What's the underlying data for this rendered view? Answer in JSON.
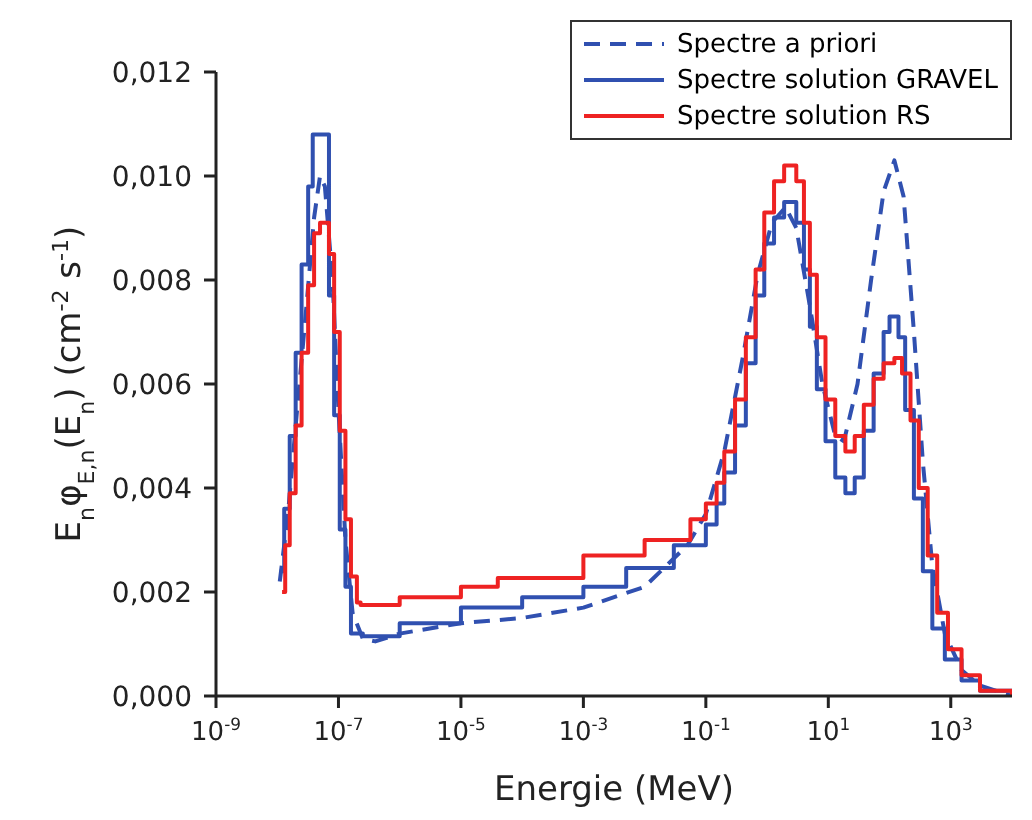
{
  "chart_data": {
    "type": "line",
    "xlabel": "Energie (MeV)",
    "ylabel": "E$_{n}$φ$_{E,n}$(E$_{n}$) (cm$^{-2}$ s$^{-1}$)",
    "log": "x",
    "xlim": [
      1e-09,
      10000
    ],
    "ylim": [
      0,
      0.012
    ],
    "xticks": [
      {
        "value": 1e-09,
        "label": "10$^{-9}$"
      },
      {
        "value": 1e-07,
        "label": "10$^{-7}$"
      },
      {
        "value": 1e-05,
        "label": "10$^{-5}$"
      },
      {
        "value": 0.001,
        "label": "10$^{-3}$"
      },
      {
        "value": 0.1,
        "label": "10$^{-1}$"
      },
      {
        "value": 10,
        "label": "10$^{1}$"
      },
      {
        "value": 1000,
        "label": "10$^{3}$"
      }
    ],
    "yticks": [
      {
        "value": 0,
        "label": "0,000"
      },
      {
        "value": 0.002,
        "label": "0,002"
      },
      {
        "value": 0.004,
        "label": "0,004"
      },
      {
        "value": 0.006,
        "label": "0,006"
      },
      {
        "value": 0.008,
        "label": "0,008"
      },
      {
        "value": 0.01,
        "label": "0,010"
      },
      {
        "value": 0.012,
        "label": "0,012"
      }
    ],
    "grid": false,
    "legend": "top right",
    "marker": "none",
    "series": [
      {
        "name": "Spectre a priori",
        "line_style": "dashed",
        "color": "#3050b0",
        "x": [
          1.1e-08,
          1.5e-08,
          2e-08,
          3e-08,
          4e-08,
          5e-08,
          6e-08,
          8e-08,
          1e-07,
          1.3e-07,
          1.7e-07,
          2.5e-07,
          4e-07,
          1e-06,
          1e-05,
          0.0001,
          0.001,
          0.01,
          0.05,
          0.1,
          0.2,
          0.4,
          0.7,
          1.2,
          2,
          3,
          5,
          8,
          13,
          18,
          30,
          50,
          80,
          120,
          170,
          250,
          350,
          500,
          800,
          1500,
          3000,
          10000
        ],
        "values": [
          0.0022,
          0.0035,
          0.0052,
          0.0075,
          0.0092,
          0.01,
          0.0098,
          0.008,
          0.0055,
          0.003,
          0.0016,
          0.0011,
          0.00105,
          0.0012,
          0.0014,
          0.0015,
          0.0017,
          0.0021,
          0.0029,
          0.0035,
          0.0047,
          0.0065,
          0.0081,
          0.0091,
          0.0094,
          0.009,
          0.0075,
          0.006,
          0.005,
          0.0049,
          0.006,
          0.008,
          0.0097,
          0.0103,
          0.0096,
          0.007,
          0.0045,
          0.0025,
          0.0012,
          0.0005,
          0.0002,
          0
        ]
      },
      {
        "name": "Spectre solution GRAVEL",
        "type": "step",
        "line_style": "solid",
        "color": "#3050b0",
        "x": [
          1.1e-08,
          1.3e-08,
          1.6e-08,
          2e-08,
          2.5e-08,
          3.2e-08,
          3.8e-08,
          7e-08,
          8.5e-08,
          1.05e-07,
          1.3e-07,
          1.6e-07,
          2.5e-07,
          1e-06,
          1e-05,
          0.0001,
          0.001,
          0.005,
          0.03,
          0.1,
          0.15,
          0.2,
          0.3,
          0.45,
          0.65,
          0.9,
          1.3,
          1.9,
          3,
          4,
          5,
          6.5,
          9,
          13,
          19,
          27,
          38,
          55,
          80,
          100,
          140,
          180,
          250,
          350,
          500,
          800,
          1500,
          3000,
          10000
        ],
        "values": [
          0.0024,
          0.0036,
          0.005,
          0.0066,
          0.0083,
          0.0098,
          0.0108,
          0.0077,
          0.0054,
          0.0032,
          0.0021,
          0.0012,
          0.00115,
          0.0014,
          0.0017,
          0.0019,
          0.0021,
          0.00246,
          0.0029,
          0.0033,
          0.0037,
          0.0043,
          0.0052,
          0.0064,
          0.0077,
          0.0087,
          0.0092,
          0.0095,
          0.0091,
          0.0082,
          0.0071,
          0.0059,
          0.0049,
          0.0042,
          0.0039,
          0.0042,
          0.0051,
          0.0062,
          0.007,
          0.0073,
          0.0069,
          0.0055,
          0.0038,
          0.0024,
          0.0013,
          0.0007,
          0.0003,
          0.0001,
          0
        ]
      },
      {
        "name": "Spectre solution RS",
        "type": "step",
        "line_style": "solid",
        "color": "#ee2222",
        "x": [
          1.2e-08,
          1.35e-08,
          1.6e-08,
          2e-08,
          2.5e-08,
          3.2e-08,
          4e-08,
          5e-08,
          7e-08,
          8.5e-08,
          1.05e-07,
          1.3e-07,
          1.6e-07,
          2e-07,
          2.3e-07,
          1e-06,
          1e-05,
          4e-05,
          0.001,
          0.01,
          0.056,
          0.1,
          0.15,
          0.2,
          0.3,
          0.45,
          0.65,
          0.9,
          1.3,
          1.9,
          3,
          4,
          5,
          6.5,
          9,
          13,
          19,
          27,
          38,
          55,
          80,
          120,
          160,
          220,
          300,
          420,
          600,
          900,
          1500,
          3000,
          10000
        ],
        "values": [
          0.002,
          0.0029,
          0.0039,
          0.0052,
          0.0066,
          0.0079,
          0.0089,
          0.0091,
          0.0085,
          0.007,
          0.0051,
          0.0034,
          0.0023,
          0.0018,
          0.00175,
          0.0019,
          0.0021,
          0.00227,
          0.0027,
          0.003,
          0.0034,
          0.0037,
          0.0041,
          0.0047,
          0.0057,
          0.0069,
          0.0082,
          0.0093,
          0.0099,
          0.0102,
          0.0099,
          0.0091,
          0.0081,
          0.0069,
          0.0057,
          0.005,
          0.0047,
          0.005,
          0.0056,
          0.0061,
          0.0064,
          0.0065,
          0.0062,
          0.0053,
          0.004,
          0.0027,
          0.0016,
          0.0009,
          0.0004,
          0.0001,
          0
        ]
      }
    ]
  }
}
